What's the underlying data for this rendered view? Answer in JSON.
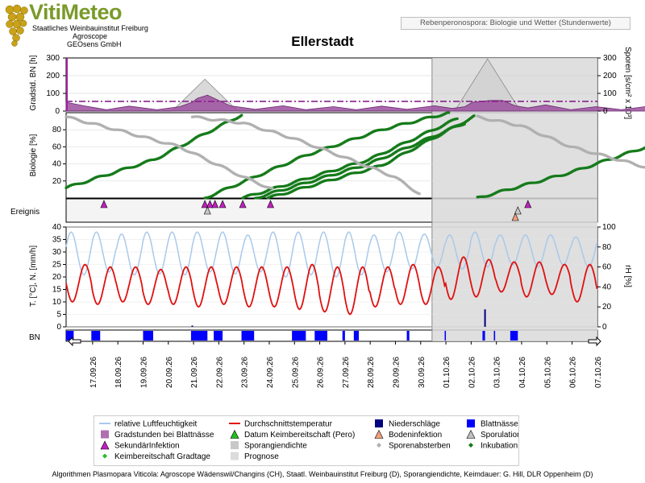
{
  "header": {
    "brand": "VitiMeteo",
    "org_lines": [
      "Staatliches Weinbauinstitut Freiburg",
      "Agroscope",
      "GEOsens GmbH"
    ],
    "report_title": "Rebenperonospora: Biologie und Wetter (Stundenwerte)"
  },
  "station": "Ellerstadt",
  "colors": {
    "purple": "#9b4f9e",
    "green": "#157a1a",
    "gray": "#b0b0b0",
    "red": "#e01010",
    "lightblue": "#a9c9ea",
    "blue": "#0000ff",
    "navy": "#000080",
    "magenta": "#c020c0"
  },
  "chart_data": [
    {
      "type": "area",
      "panel": "sporangien",
      "ylabel_left": "Gradstd. BN [h]",
      "ylabel_right": "Sporen [s/cm² x 10³]",
      "yticks_left": [
        "300",
        "200",
        "100",
        "0"
      ],
      "yticks_right": [
        "300",
        "200",
        "100",
        "0"
      ],
      "ylim": [
        0,
        300
      ],
      "x_days": [
        0,
        0.7,
        1.6,
        2.5,
        3.6,
        4.5,
        5.0,
        5.2,
        5.6,
        5.9,
        6.5,
        7.5,
        8.6,
        9.5,
        10.6,
        11.5,
        12.5,
        13.5,
        14.6,
        15.3,
        15.8,
        16.1,
        16.8,
        17.3,
        17.8,
        18.3,
        19.0,
        20.0,
        21.0,
        22.0,
        23.1,
        24.0
      ],
      "gradstunden": [
        50,
        30,
        8,
        28,
        8,
        25,
        50,
        72,
        90,
        70,
        30,
        10,
        30,
        8,
        25,
        8,
        28,
        10,
        30,
        15,
        25,
        50,
        60,
        60,
        30,
        18,
        35,
        8,
        25,
        8,
        28,
        10
      ],
      "sporangiendichte_peaks": [
        {
          "day": 5.5,
          "value": 180
        },
        {
          "day": 16.7,
          "value": 295
        }
      ],
      "threshold_line": 55
    },
    {
      "type": "line",
      "panel": "biologie",
      "ylabel": "Biologie [%]",
      "yticks": [
        "80",
        "60",
        "40",
        "20"
      ],
      "ylim": [
        0,
        100
      ],
      "series": [
        {
          "name": "Inkubation",
          "segments": [
            [
              [
                0,
                12
              ],
              [
                3.5,
                45
              ],
              [
                7.0,
                98
              ]
            ],
            [
              [
                5.5,
                0
              ],
              [
                9.5,
                50
              ],
              [
                12.5,
                80
              ],
              [
                14.5,
                95
              ],
              [
                15.2,
                100
              ]
            ],
            [
              [
                7.0,
                0
              ],
              [
                12,
                45
              ],
              [
                15.5,
                93
              ]
            ],
            [
              [
                7.5,
                0
              ],
              [
                12,
                40
              ],
              [
                15.8,
                88
              ]
            ],
            [
              [
                8.0,
                0
              ],
              [
                12.5,
                38
              ],
              [
                16.2,
                96
              ]
            ],
            [
              [
                16.3,
                0
              ],
              [
                20,
                30
              ],
              [
                22,
                50
              ],
              [
                24,
                70
              ]
            ]
          ]
        },
        {
          "name": "Sporenabsterben",
          "segments": [
            [
              [
                0,
                95
              ],
              [
                2,
                80
              ],
              [
                4.5,
                60
              ],
              [
                7.0,
                25
              ],
              [
                8.2,
                10
              ]
            ],
            [
              [
                5.0,
                95
              ],
              [
                7,
                88
              ],
              [
                9,
                70
              ],
              [
                11,
                48
              ],
              [
                13,
                25
              ],
              [
                14.0,
                5
              ]
            ],
            [
              [
                16.3,
                95
              ],
              [
                18,
                85
              ],
              [
                20,
                60
              ],
              [
                22.5,
                40
              ],
              [
                24,
                28
              ]
            ]
          ]
        }
      ]
    },
    {
      "type": "scatter",
      "panel": "ereignis",
      "ylabel": "Ereignis",
      "events": [
        {
          "name": "SekundärInfektion",
          "days": [
            1.5,
            5.5,
            5.7,
            5.9,
            6.2,
            7.0,
            8.1,
            18.3
          ]
        },
        {
          "name": "Sporulation",
          "days": [
            5.6,
            17.9
          ]
        },
        {
          "name": "Bodeninfektion",
          "days": [
            17.8
          ]
        }
      ]
    },
    {
      "type": "line",
      "panel": "wetter",
      "ylabel_left": "T. [°C], N. [mm/h]",
      "ylabel_right": "rH [%]",
      "yticks_left": [
        "40",
        "35",
        "30",
        "25",
        "20",
        "15",
        "10",
        "5",
        "0"
      ],
      "yticks_right": [
        "100",
        "80",
        "60",
        "40",
        "20",
        "0"
      ],
      "temp_ylim": [
        0,
        40
      ],
      "rh_ylim": [
        0,
        100
      ],
      "daily_temperature": [
        [
          10,
          25
        ],
        [
          9,
          24
        ],
        [
          10,
          24
        ],
        [
          9,
          23
        ],
        [
          9,
          24
        ],
        [
          8,
          24
        ],
        [
          9,
          24
        ],
        [
          8,
          24
        ],
        [
          8,
          24
        ],
        [
          7,
          25
        ],
        [
          6,
          24
        ],
        [
          5,
          24
        ],
        [
          8,
          24
        ],
        [
          9,
          25
        ],
        [
          9,
          24
        ],
        [
          11,
          28
        ],
        [
          12,
          27
        ],
        [
          14,
          26
        ],
        [
          12,
          26
        ],
        [
          13,
          25
        ],
        [
          10,
          25
        ],
        [
          10,
          24
        ],
        [
          11,
          24
        ],
        [
          12,
          26
        ]
      ],
      "daily_humidity": [
        [
          52,
          95
        ],
        [
          55,
          95
        ],
        [
          52,
          93
        ],
        [
          53,
          95
        ],
        [
          52,
          95
        ],
        [
          55,
          95
        ],
        [
          53,
          95
        ],
        [
          55,
          92
        ],
        [
          50,
          95
        ],
        [
          52,
          95
        ],
        [
          50,
          95
        ],
        [
          52,
          95
        ],
        [
          55,
          92
        ],
        [
          58,
          95
        ],
        [
          60,
          93
        ],
        [
          58,
          92
        ],
        [
          60,
          95
        ],
        [
          62,
          92
        ],
        [
          60,
          92
        ],
        [
          62,
          92
        ],
        [
          60,
          90
        ],
        [
          60,
          92
        ],
        [
          62,
          92
        ],
        [
          60,
          92
        ]
      ],
      "niederschlag": [
        {
          "day": 5.0,
          "value": 0.5
        },
        {
          "day": 16.6,
          "value": 7.0
        }
      ]
    },
    {
      "type": "bar",
      "panel": "bn",
      "ylabel": "BN",
      "blattnaesse_days": [
        [
          0.0,
          0.3
        ],
        [
          1.0,
          1.35
        ],
        [
          3.05,
          3.45
        ],
        [
          4.95,
          5.6
        ],
        [
          5.85,
          6.2
        ],
        [
          6.95,
          7.45
        ],
        [
          8.95,
          9.5
        ],
        [
          9.85,
          10.35
        ],
        [
          10.95,
          11.05
        ],
        [
          11.4,
          11.6
        ],
        [
          13.5,
          13.6
        ],
        [
          15.0,
          15.05
        ],
        [
          16.5,
          16.6
        ],
        [
          16.95,
          17.0
        ],
        [
          17.6,
          17.9
        ]
      ]
    }
  ],
  "x_dates": [
    "17.09.26",
    "18.09.26",
    "19.09.26",
    "20.09.26",
    "21.09.26",
    "22.09.26",
    "23.09.26",
    "24.09.26",
    "25.09.26",
    "26.09.26",
    "27.09.26",
    "28.09.26",
    "29.09.26",
    "30.09.26",
    "01.10.26",
    "02.10.26",
    "03.10.26",
    "04.10.26",
    "05.10.26",
    "06.10.26",
    "07.10.26"
  ],
  "prognose_start_day": 14.5,
  "legend": [
    {
      "label": "relative Luftfeuchtigkeit",
      "symbol": "line",
      "color": "#a9c9ea"
    },
    {
      "label": "Durchschnittstemperatur",
      "symbol": "line",
      "color": "#e01010"
    },
    {
      "label": "Niederschläge",
      "symbol": "square",
      "color": "#000080"
    },
    {
      "label": "Blattnässe",
      "symbol": "square",
      "color": "#0000ff"
    },
    {
      "label": "Gradstunden bei Blattnässe",
      "symbol": "square",
      "color": "#b070b0"
    },
    {
      "label": "Datum Keimbereitschaft (Pero)",
      "symbol": "triangle",
      "color": "#20c020"
    },
    {
      "label": "Bodeninfektion",
      "symbol": "triangle",
      "color": "#f0a080"
    },
    {
      "label": "Sporulation",
      "symbol": "triangle",
      "color": "#c0c0c0"
    },
    {
      "label": "SekundärInfektion",
      "symbol": "triangle",
      "color": "#c020c0"
    },
    {
      "label": "Sporangiendichte",
      "symbol": "square",
      "color": "#c8c8c8"
    },
    {
      "label": "Sporenabsterben",
      "symbol": "diamond",
      "color": "#b0b0b0"
    },
    {
      "label": "Inkubation",
      "symbol": "diamond",
      "color": "#157a1a"
    },
    {
      "label": "Keimbereitschaft Gradtage",
      "symbol": "diamond",
      "color": "#20c020"
    },
    {
      "label": "Prognose",
      "symbol": "square",
      "color": "#dcdcdc"
    }
  ],
  "footer": "Algorithmen Plasmopara Viticola: Agroscope Wädenswil/Changins (CH), Staatl. Weinbauinstitut Freiburg (D), Sporangiendichte, Keimdauer: G. Hill, DLR Oppenheim (D)"
}
